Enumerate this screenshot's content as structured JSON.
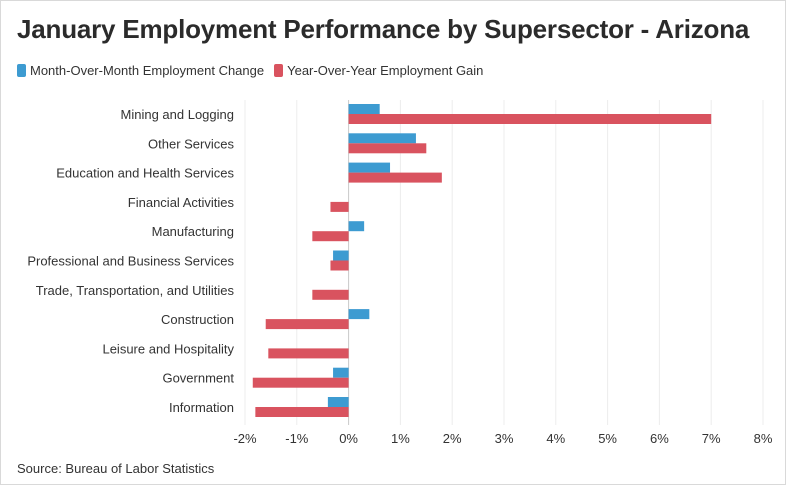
{
  "chart_data": {
    "type": "bar",
    "orientation": "horizontal",
    "title": "January Employment Performance by Supersector - Arizona",
    "source": "Source: Bureau of Labor Statistics",
    "categories": [
      "Mining and Logging",
      "Other Services",
      "Education and Health Services",
      "Financial Activities",
      "Manufacturing",
      "Professional and Business Services",
      "Trade, Transportation, and Utilities",
      "Construction",
      "Leisure and Hospitality",
      "Government",
      "Information"
    ],
    "series": [
      {
        "name": "Month-Over-Month Employment Change",
        "color": "#3d9bd1",
        "values": [
          0.6,
          1.3,
          0.8,
          0.0,
          0.3,
          -0.3,
          0.0,
          0.4,
          0.0,
          -0.3,
          -0.4
        ]
      },
      {
        "name": "Year-Over-Year Employment Gain",
        "color": "#d9535f",
        "values": [
          7.0,
          1.5,
          1.8,
          -0.35,
          -0.7,
          -0.35,
          -0.7,
          -1.6,
          -1.55,
          -1.85,
          -1.8
        ]
      }
    ],
    "xlim": [
      -2,
      8
    ],
    "xticks": [
      -2,
      -1,
      0,
      1,
      2,
      3,
      4,
      5,
      6,
      7,
      8
    ],
    "xtick_labels": [
      "-2%",
      "-1%",
      "0%",
      "1%",
      "2%",
      "3%",
      "4%",
      "5%",
      "6%",
      "7%",
      "8%"
    ],
    "grid": true,
    "legend_position": "top-left"
  }
}
